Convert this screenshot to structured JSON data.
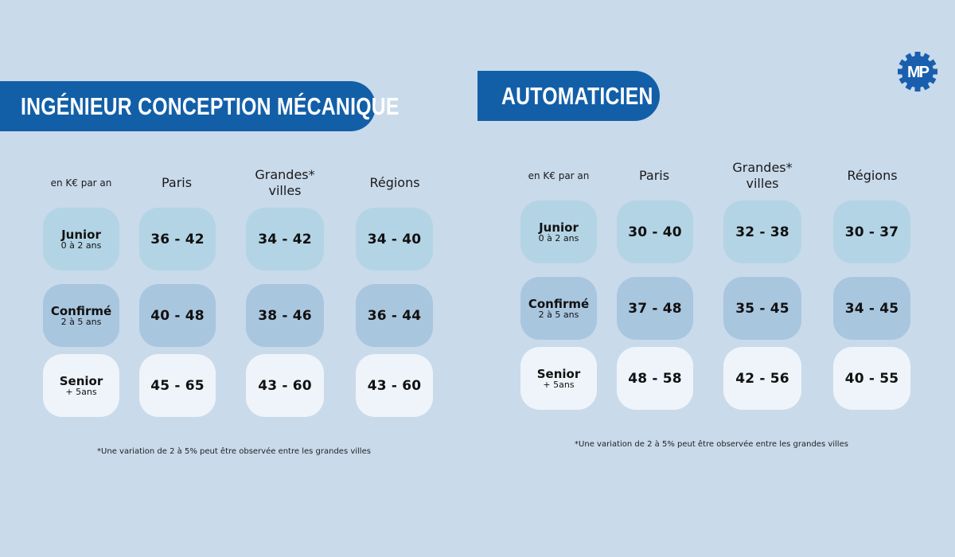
{
  "colors": {
    "background": "#c9daeb",
    "banner": "#125fa8",
    "junior": "#b3d4e5",
    "confirme": "#a9c6df",
    "senior": "#eef4f9",
    "logo": "#1a5fae"
  },
  "logo": {
    "text": "MP",
    "icon": "gear-icon"
  },
  "panels": [
    {
      "title": "INGÉNIEUR CONCEPTION MÉCANIQUE",
      "unit_label": "en K€ par an",
      "columns": [
        "Paris",
        "Grandes*",
        "Régions"
      ],
      "columns_sub": [
        "",
        "villes",
        ""
      ],
      "rows": [
        {
          "level": "Junior",
          "experience": "0 à 2 ans",
          "values": [
            "36 - 42",
            "34 - 42",
            "34 - 40"
          ]
        },
        {
          "level": "Confirmé",
          "experience": "2 à 5 ans",
          "values": [
            "40 - 48",
            "38 - 46",
            "36 - 44"
          ]
        },
        {
          "level": "Senior",
          "experience": "+ 5ans",
          "values": [
            "45 - 65",
            "43 - 60",
            "43 - 60"
          ]
        }
      ],
      "footnote": "*Une variation de 2 à 5% peut être observée entre les grandes villes"
    },
    {
      "title": "AUTOMATICIEN",
      "unit_label": "en K€ par an",
      "columns": [
        "Paris",
        "Grandes*",
        "Régions"
      ],
      "columns_sub": [
        "",
        "villes",
        ""
      ],
      "rows": [
        {
          "level": "Junior",
          "experience": "0 à 2 ans",
          "values": [
            "30 - 40",
            "32 - 38",
            "30 - 37"
          ]
        },
        {
          "level": "Confirmé",
          "experience": "2 à 5 ans",
          "values": [
            "37 - 48",
            "35 - 45",
            "34 - 45"
          ]
        },
        {
          "level": "Senior",
          "experience": "+ 5ans",
          "values": [
            "48 - 58",
            "42 - 56",
            "40 - 55"
          ]
        }
      ],
      "footnote": "*Une variation de 2 à 5% peut être observée entre les grandes villes"
    }
  ]
}
